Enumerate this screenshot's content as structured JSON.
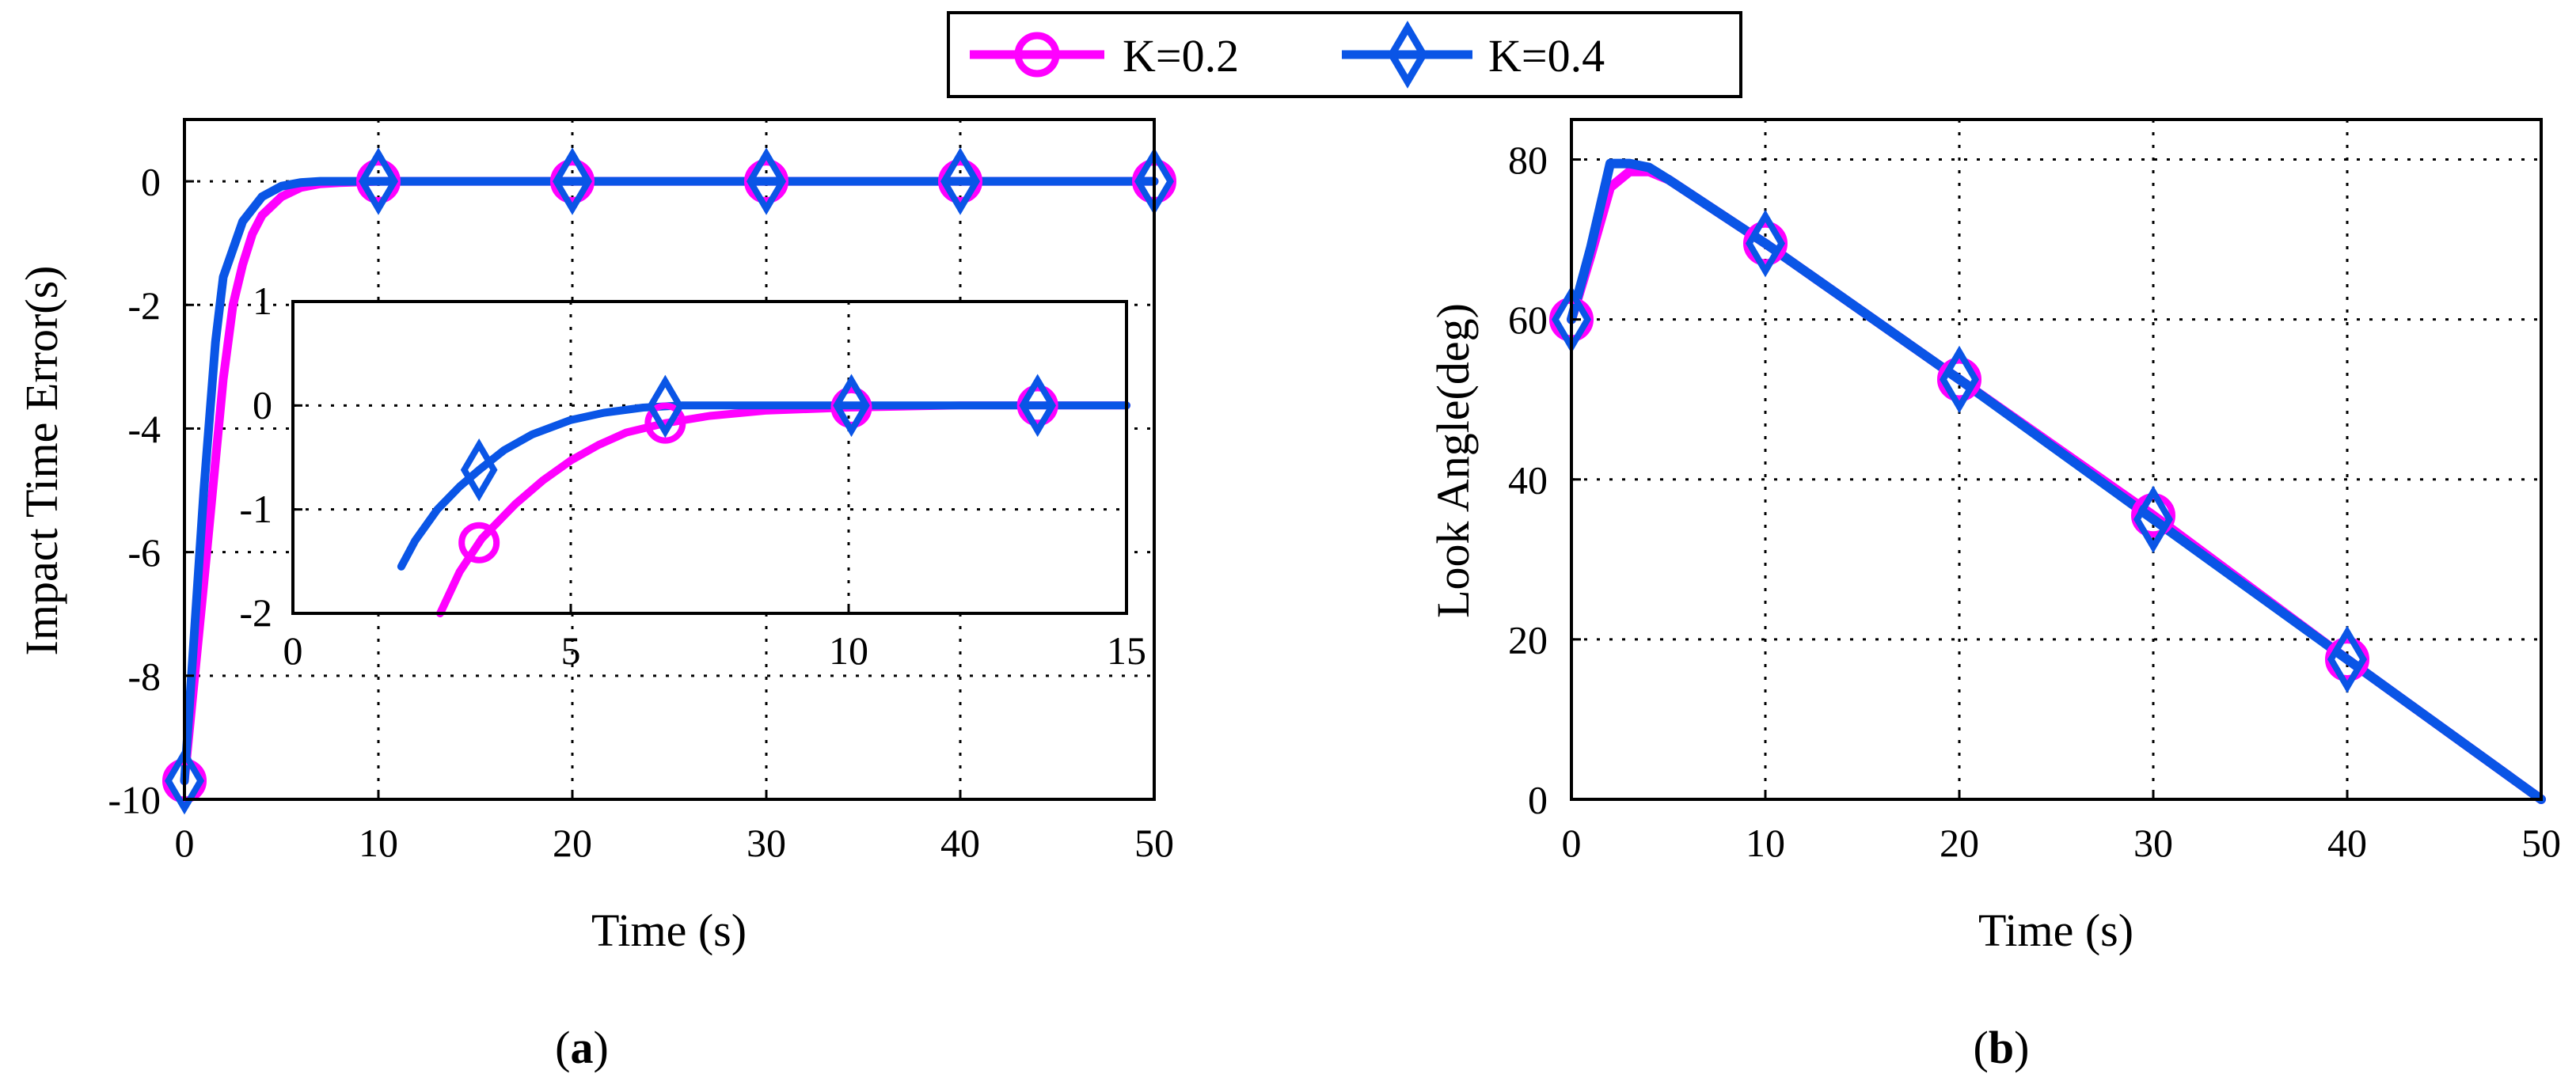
{
  "legend": {
    "entries": [
      {
        "label": "K=0.2",
        "color": "#ff00ff",
        "marker": "circle"
      },
      {
        "label": "K=0.4",
        "color": "#0a55e6",
        "marker": "diamond"
      }
    ]
  },
  "captions": {
    "a_open": "(",
    "a_letter": "a",
    "a_close": ")",
    "b_open": "(",
    "b_letter": "b",
    "b_close": ")"
  },
  "chart_data": [
    {
      "id": "a",
      "type": "line",
      "title": "",
      "xlabel": "Time (s)",
      "ylabel": "Impact Time Error(s)",
      "xlim": [
        0,
        50
      ],
      "ylim": [
        -10,
        1
      ],
      "xticks": [
        0,
        10,
        20,
        30,
        40,
        50
      ],
      "xtick_labels": [
        "0",
        "10",
        "20",
        "30",
        "40",
        "50"
      ],
      "yticks": [
        -10,
        -8,
        -6,
        -4,
        -2,
        0
      ],
      "ytick_labels": [
        "-10",
        "-8",
        "-6",
        "-4",
        "-2",
        "0"
      ],
      "grid": true,
      "series": [
        {
          "name": "K=0.2",
          "color": "#ff00ff",
          "marker": "circle",
          "x": [
            0,
            1,
            2,
            2.5,
            3,
            3.5,
            4,
            5,
            6,
            7,
            8,
            10,
            15,
            20,
            30,
            40,
            50
          ],
          "y": [
            -9.7,
            -6.5,
            -3.2,
            -2.0,
            -1.35,
            -0.85,
            -0.55,
            -0.25,
            -0.1,
            -0.04,
            -0.02,
            0,
            0,
            0,
            0,
            0,
            0
          ],
          "marker_x": [
            0,
            10,
            20,
            30,
            40,
            50
          ]
        },
        {
          "name": "K=0.4",
          "color": "#0a55e6",
          "marker": "diamond",
          "x": [
            0,
            1,
            1.6,
            2,
            3,
            4,
            5,
            6,
            7,
            8,
            10,
            20,
            30,
            40,
            50
          ],
          "y": [
            -9.7,
            -5,
            -2.6,
            -1.55,
            -0.65,
            -0.25,
            -0.08,
            -0.02,
            0,
            0,
            0,
            0,
            0,
            0,
            0
          ],
          "marker_x": [
            0,
            10,
            20,
            30,
            40,
            50
          ]
        }
      ],
      "inset": {
        "xlim": [
          0,
          15
        ],
        "ylim": [
          -2,
          1
        ],
        "xticks": [
          0,
          5,
          10,
          15
        ],
        "xtick_labels": [
          "0",
          "5",
          "10",
          "15"
        ],
        "yticks": [
          -2,
          -1,
          0,
          1
        ],
        "ytick_labels": [
          "-2",
          "-1",
          "0",
          "1"
        ],
        "grid": true,
        "series": [
          {
            "name": "K=0.2",
            "color": "#ff00ff",
            "marker": "circle",
            "x": [
              2.65,
              3,
              3.4,
              4,
              4.5,
              5,
              5.5,
              6,
              6.7,
              7.5,
              8.5,
              10,
              12,
              15
            ],
            "y": [
              -2,
              -1.6,
              -1.28,
              -0.95,
              -0.72,
              -0.53,
              -0.38,
              -0.26,
              -0.17,
              -0.1,
              -0.05,
              -0.02,
              0,
              0
            ],
            "marker_x": [
              3.35,
              6.7,
              10.05,
              13.4
            ]
          },
          {
            "name": "K=0.4",
            "color": "#0a55e6",
            "marker": "diamond",
            "x": [
              1.95,
              2.2,
              2.6,
              3,
              3.35,
              3.8,
              4.3,
              5,
              5.6,
              6.3,
              7,
              8,
              10,
              15
            ],
            "y": [
              -1.55,
              -1.3,
              -1.0,
              -0.78,
              -0.62,
              -0.43,
              -0.28,
              -0.14,
              -0.07,
              -0.02,
              0,
              0,
              0,
              0
            ],
            "marker_x": [
              3.35,
              6.7,
              10.05,
              13.4
            ]
          }
        ]
      }
    },
    {
      "id": "b",
      "type": "line",
      "title": "",
      "xlabel": "Time (s)",
      "ylabel": "Look Angle(deg)",
      "xlim": [
        0,
        50
      ],
      "ylim": [
        0,
        85
      ],
      "xticks": [
        0,
        10,
        20,
        30,
        40,
        50
      ],
      "xtick_labels": [
        "0",
        "10",
        "20",
        "30",
        "40",
        "50"
      ],
      "yticks": [
        0,
        20,
        40,
        60,
        80
      ],
      "ytick_labels": [
        "0",
        "20",
        "40",
        "60",
        "80"
      ],
      "grid": true,
      "series": [
        {
          "name": "K=0.2",
          "color": "#ff00ff",
          "marker": "circle",
          "x": [
            0,
            1,
            2,
            3,
            4,
            5,
            10,
            20,
            30,
            40,
            50
          ],
          "y": [
            60,
            68,
            76.5,
            78.5,
            78.5,
            77.5,
            69.5,
            52.5,
            35.5,
            17.5,
            0
          ],
          "marker_x": [
            0,
            10,
            20,
            30,
            40
          ]
        },
        {
          "name": "K=0.4",
          "color": "#0a55e6",
          "marker": "diamond",
          "x": [
            0,
            1,
            2,
            3,
            4,
            5,
            10,
            20,
            30,
            40,
            50
          ],
          "y": [
            60,
            69,
            79.5,
            79.5,
            79,
            77.5,
            69.5,
            52.5,
            35,
            17.5,
            0
          ],
          "marker_x": [
            0,
            10,
            20,
            30,
            40
          ]
        }
      ]
    }
  ]
}
